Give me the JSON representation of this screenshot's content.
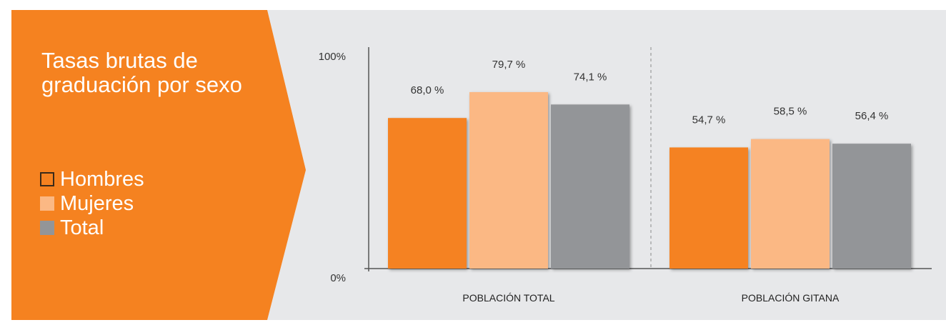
{
  "colors": {
    "panel": "#f58220",
    "background": "#e7e8ea",
    "hombres": "#f58220",
    "mujeres": "#fbb884",
    "total": "#939598"
  },
  "legend": {
    "items": [
      {
        "label": "Hombres",
        "color": "#f58220",
        "outline": true
      },
      {
        "label": "Mujeres",
        "color": "#fbb884",
        "outline": false
      },
      {
        "label": "Total",
        "color": "#939598",
        "outline": false
      }
    ]
  },
  "chart_data": {
    "type": "bar",
    "title": "Tasas brutas de graduación por sexo",
    "categories": [
      "POBLACIÓN TOTAL",
      "POBLACIÓN GITANA"
    ],
    "series": [
      {
        "name": "Hombres",
        "values": [
          68.0,
          54.7
        ],
        "labels": [
          "68,0 %",
          "54,7 %"
        ]
      },
      {
        "name": "Mujeres",
        "values": [
          79.7,
          58.5
        ],
        "labels": [
          "79,7 %",
          "58,5 %"
        ]
      },
      {
        "name": "Total",
        "values": [
          74.1,
          56.4
        ],
        "labels": [
          "74,1 %",
          "56,4 %"
        ]
      }
    ],
    "ylim": [
      0,
      100
    ],
    "y_ticks": [
      {
        "value": 0,
        "label": "0%"
      },
      {
        "value": 100,
        "label": "100%"
      }
    ],
    "grid": false,
    "legend_position": "left"
  }
}
